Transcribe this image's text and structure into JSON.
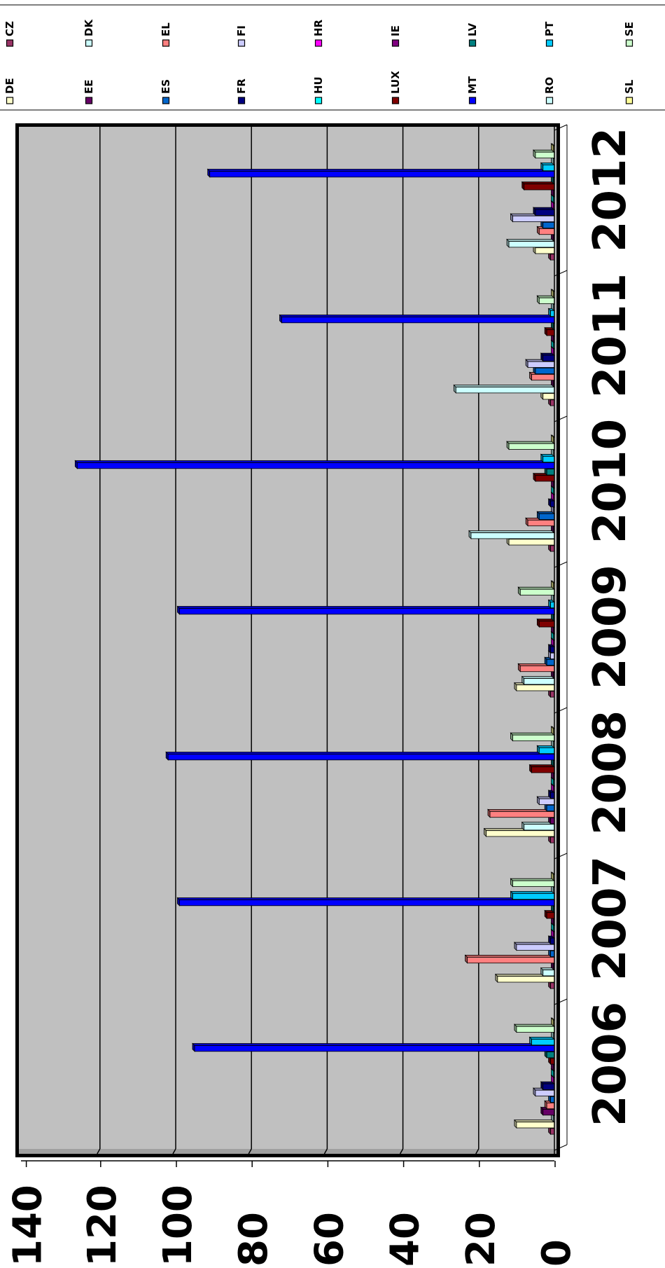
{
  "chart_data": {
    "type": "bar",
    "orientation": "horizontal",
    "rotated": true,
    "three_d": true,
    "title": "",
    "xlabel": "",
    "ylabel": "",
    "ylim": [
      0,
      140
    ],
    "yticks": [
      "0",
      "20",
      "40",
      "60",
      "80",
      "100",
      "120",
      "140"
    ],
    "grid": true,
    "legend_position": "top",
    "categories": [
      "2006",
      "2007",
      "2008",
      "2009",
      "2010",
      "2011",
      "2012"
    ],
    "series": [
      {
        "name": "CZ",
        "color": "#993366",
        "values": [
          1,
          1,
          1,
          1,
          1,
          1,
          1
        ]
      },
      {
        "name": "DE",
        "color": "#ffffcc",
        "values": [
          10,
          15,
          18,
          10,
          12,
          3,
          5
        ]
      },
      {
        "name": "DK",
        "color": "#ccffff",
        "values": [
          0,
          3,
          8,
          8,
          22,
          26,
          12
        ]
      },
      {
        "name": "EE",
        "color": "#660066",
        "values": [
          3,
          0,
          1,
          0,
          0,
          0,
          0
        ]
      },
      {
        "name": "EL",
        "color": "#ff8080",
        "values": [
          2,
          23,
          17,
          9,
          7,
          6,
          4
        ]
      },
      {
        "name": "ES",
        "color": "#0066cc",
        "values": [
          1,
          1,
          2,
          2,
          4,
          5,
          3
        ]
      },
      {
        "name": "FI",
        "color": "#ccccff",
        "values": [
          5,
          10,
          4,
          1,
          0,
          7,
          11
        ]
      },
      {
        "name": "FR",
        "color": "#000080",
        "values": [
          3,
          1,
          1,
          1,
          1,
          3,
          5
        ]
      },
      {
        "name": "HR",
        "color": "#ff00ff",
        "values": [
          0,
          0,
          0,
          0,
          0,
          0,
          0
        ]
      },
      {
        "name": "HU",
        "color": "#00ffff",
        "values": [
          0,
          0,
          0,
          0,
          0,
          0,
          0
        ]
      },
      {
        "name": "IE",
        "color": "#800080",
        "values": [
          0,
          0,
          0,
          0,
          0,
          0,
          0
        ]
      },
      {
        "name": "LUX",
        "color": "#800000",
        "values": [
          1,
          2,
          6,
          4,
          5,
          2,
          8
        ]
      },
      {
        "name": "LV",
        "color": "#008080",
        "values": [
          2,
          0,
          0,
          0,
          2,
          0,
          0
        ]
      },
      {
        "name": "MT",
        "color": "#0000ff",
        "values": [
          95,
          99,
          102,
          99,
          126,
          72,
          91
        ]
      },
      {
        "name": "PT",
        "color": "#00ccff",
        "values": [
          6,
          11,
          4,
          1,
          3,
          1,
          3
        ]
      },
      {
        "name": "RO",
        "color": "#ccffff",
        "values": [
          0,
          0,
          0,
          0,
          0,
          0,
          0
        ]
      },
      {
        "name": "SE",
        "color": "#ccffcc",
        "values": [
          10,
          11,
          11,
          9,
          12,
          4,
          5
        ]
      },
      {
        "name": "SL",
        "color": "#ffff99",
        "values": [
          0,
          0,
          0,
          0,
          0,
          0,
          0
        ]
      }
    ],
    "colors": {
      "plot_background": "#c0c0c0",
      "plot_border": "#000000",
      "gridline": "#000000"
    }
  }
}
